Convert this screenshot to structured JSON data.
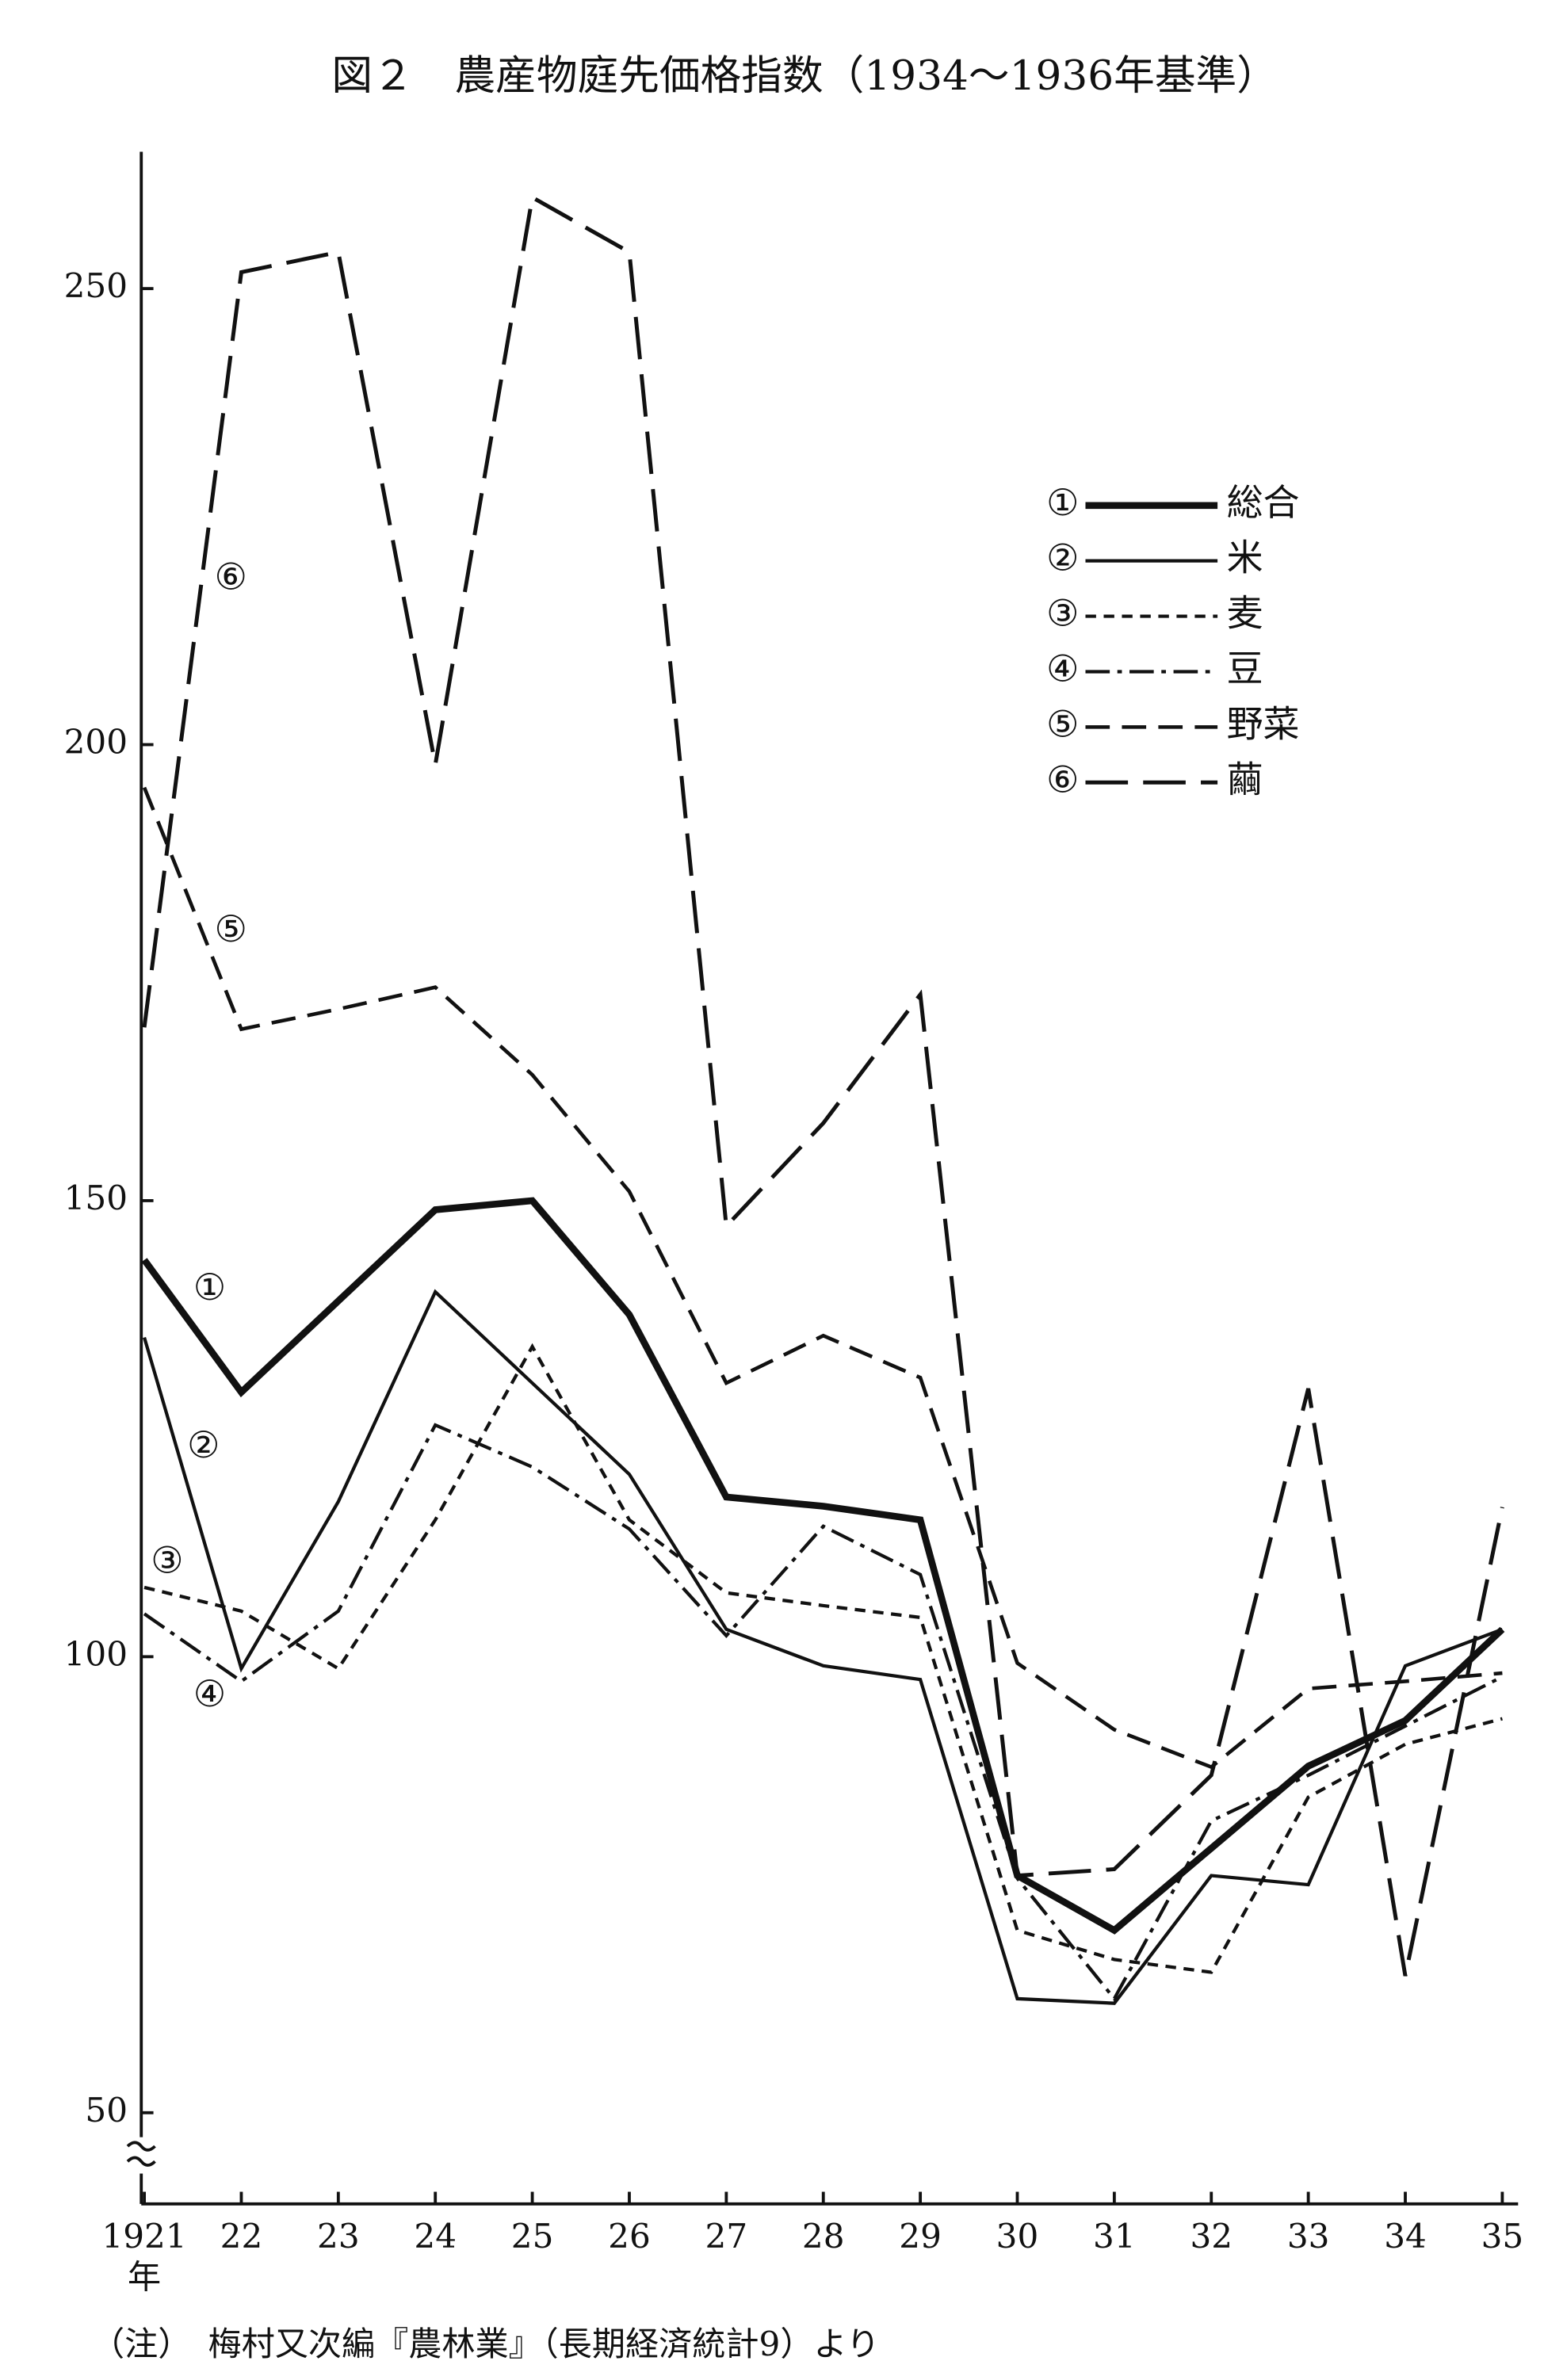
{
  "chart_data": {
    "type": "line",
    "title": "図２　農産物庭先価格指数（1934～1936年基準）",
    "note": "（注）　梅村又次編『農林業』（長期経済統計9）より",
    "x_label": "年",
    "categories": [
      "1921",
      "22",
      "23",
      "24",
      "25",
      "26",
      "27",
      "28",
      "29",
      "30",
      "31",
      "32",
      "33",
      "34",
      "35"
    ],
    "ylim": [
      40,
      265
    ],
    "yticks": [
      50,
      100,
      150,
      200,
      250
    ],
    "grid": false,
    "legend": "upper right",
    "series": [
      {
        "name": "総合",
        "marker": "①",
        "color": "#111111",
        "style": "thick",
        "values": [
          143.5,
          129,
          139,
          149,
          150,
          137.5,
          117.5,
          116.5,
          115,
          76,
          70,
          79,
          88,
          93,
          103
        ]
      },
      {
        "name": "米",
        "marker": "②",
        "color": "#111111",
        "style": "solid",
        "values": [
          135,
          98.7,
          117,
          140,
          130,
          120,
          103,
          99,
          97.5,
          62.5,
          62,
          76,
          75,
          99,
          103
        ]
      },
      {
        "name": "麦",
        "marker": "③",
        "color": "#111111",
        "style": "short-dash",
        "values": [
          107.6,
          105,
          98.7,
          115,
          134,
          115,
          107,
          105.6,
          104.3,
          70,
          66.8,
          65.4,
          84.6,
          90.4,
          93.2
        ]
      },
      {
        "name": "豆",
        "marker": "④",
        "color": "#111111",
        "style": "dash-dot",
        "values": [
          104.7,
          97.3,
          105,
          125.4,
          120.8,
          114,
          102.3,
          114.3,
          109,
          75.7,
          62.5,
          82,
          87,
          92.4,
          97.8
        ]
      },
      {
        "name": "野菜",
        "marker": "⑤",
        "color": "#111111",
        "style": "dash",
        "values": [
          195.3,
          168.8,
          171,
          173.4,
          163.8,
          151,
          130,
          135.2,
          130.6,
          99.3,
          92,
          87.9,
          96.5,
          97.3,
          98.2
        ]
      },
      {
        "name": "繭",
        "marker": "⑥",
        "color": "#111111",
        "style": "long-dash",
        "values": [
          169,
          251.8,
          254,
          197.8,
          260,
          254,
          147.2,
          158.5,
          172.6,
          76,
          76.7,
          87,
          129.4,
          65,
          116.4
        ]
      }
    ]
  }
}
